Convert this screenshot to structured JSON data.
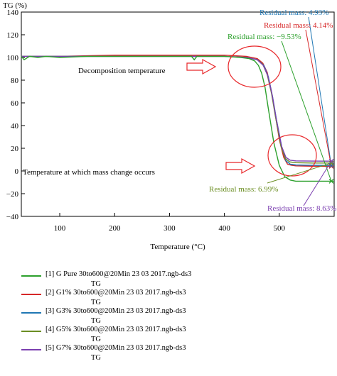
{
  "chart_data": {
    "type": "line",
    "title": "",
    "xlabel": "Temperature (°C)",
    "ylabel": "TG (%)",
    "xlim": [
      30,
      600
    ],
    "ylim": [
      -40,
      140
    ],
    "xticks": [
      100,
      200,
      300,
      400,
      500
    ],
    "yticks": [
      140,
      120,
      100,
      80,
      60,
      40,
      20,
      0,
      -20,
      -40
    ],
    "grid": false,
    "legend_position": "below",
    "series": [
      {
        "name": "[1] G Pure 30to600@20Min 23 03 2017.ngb-ds3",
        "sub": "TG",
        "color": "#2ca02c",
        "x": [
          30,
          35,
          45,
          60,
          75,
          100,
          150,
          200,
          250,
          300,
          340,
          345,
          350,
          400,
          430,
          445,
          455,
          462,
          468,
          474,
          480,
          490,
          500,
          510,
          520,
          530,
          560,
          600
        ],
        "y": [
          101,
          98,
          101,
          100,
          101,
          100,
          101,
          101,
          101,
          101,
          101,
          98,
          101,
          101,
          100,
          99,
          97,
          93,
          86,
          74,
          55,
          25,
          5,
          -5,
          -8,
          -9,
          -9,
          -9
        ]
      },
      {
        "name": "[2] G1% 30to600@20Min 23 03 2017.ngb-ds3",
        "sub": "TG",
        "color": "#d62728",
        "x": [
          30,
          100,
          200,
          300,
          400,
          440,
          460,
          470,
          478,
          485,
          490,
          500,
          508,
          515,
          522,
          530,
          560,
          600
        ],
        "y": [
          101,
          101,
          102,
          102,
          102,
          101,
          99,
          95,
          87,
          72,
          58,
          28,
          12,
          6,
          5,
          4.5,
          4.2,
          4.1
        ]
      },
      {
        "name": "[3] G3% 30to600@20Min 23 03 2017.ngb-ds3",
        "sub": "TG",
        "color": "#1f77b4",
        "x": [
          30,
          100,
          200,
          300,
          400,
          440,
          460,
          472,
          480,
          488,
          495,
          505,
          512,
          520,
          530,
          560,
          600
        ],
        "y": [
          101,
          101,
          101,
          101,
          101,
          100,
          98,
          93,
          83,
          65,
          45,
          20,
          9,
          6,
          5.3,
          5.0,
          4.9
        ]
      },
      {
        "name": "[4] G5% 30to600@20Min 23 03 2017.ngb-ds3",
        "sub": "TG",
        "color": "#6b8e23",
        "x": [
          30,
          100,
          200,
          300,
          400,
          440,
          460,
          470,
          478,
          486,
          493,
          503,
          511,
          519,
          530,
          560,
          600
        ],
        "y": [
          101,
          101,
          101,
          101,
          101,
          100,
          98,
          94,
          85,
          68,
          48,
          22,
          11,
          8,
          7.3,
          7.0,
          7.0
        ]
      },
      {
        "name": "[5] G7% 30to600@20Min 23 03 2017.ngb-ds3",
        "sub": "TG",
        "color": "#7b3fb0",
        "x": [
          30,
          100,
          200,
          300,
          400,
          440,
          460,
          471,
          479,
          487,
          494,
          504,
          512,
          520,
          530,
          560,
          600
        ],
        "y": [
          101,
          101,
          101,
          101,
          101,
          100,
          98,
          93,
          84,
          67,
          47,
          22,
          12,
          9.5,
          8.9,
          8.7,
          8.6
        ]
      }
    ],
    "annotations": {
      "residual_labels": [
        {
          "text": "Residual mass: 4.93%",
          "color": "#1f77b4",
          "series": 2
        },
        {
          "text": "Residual mass: 4.14%",
          "color": "#d62728",
          "series": 1
        },
        {
          "text": "Residual mass: −9.53%",
          "color": "#2ca02c",
          "series": 0
        },
        {
          "text": "Residual mass: 6.99%",
          "color": "#6b8e23",
          "series": 3
        },
        {
          "text": "Residual mass: 8.63%",
          "color": "#7b3fb0",
          "series": 4
        }
      ],
      "decomposition_label": "Decomposition temperature",
      "mass_change_label": "Temperature at which mass change occurs",
      "highlight_color": "#e8282b"
    }
  }
}
